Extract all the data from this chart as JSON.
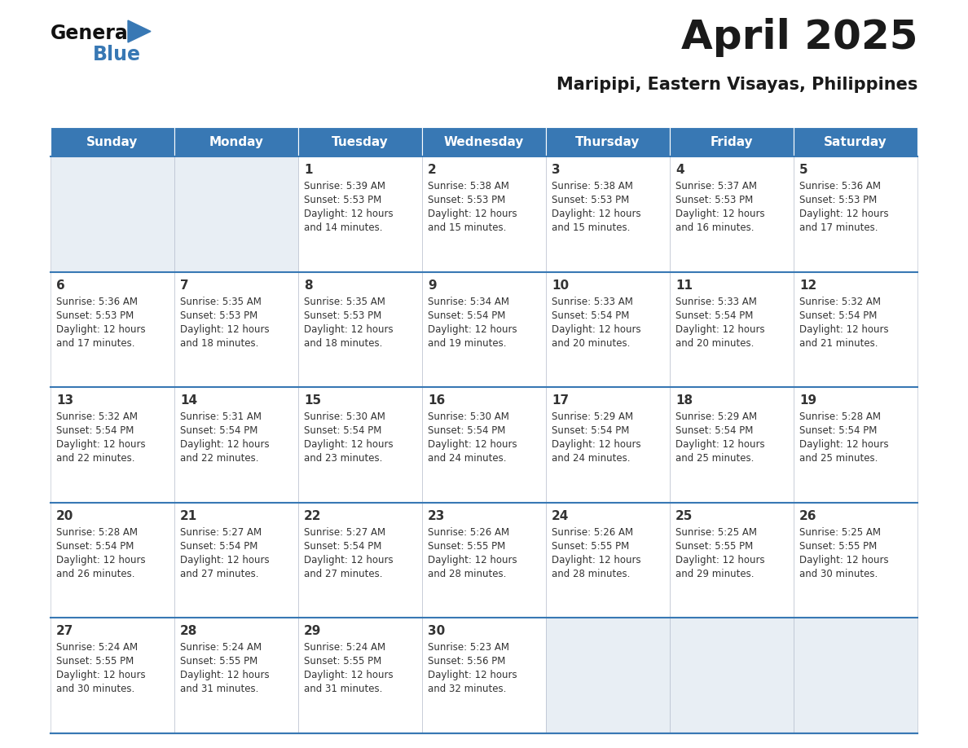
{
  "title": "April 2025",
  "subtitle": "Maripipi, Eastern Visayas, Philippines",
  "header_color": "#3878b4",
  "header_text_color": "#ffffff",
  "border_color": "#3878b4",
  "days_of_week": [
    "Sunday",
    "Monday",
    "Tuesday",
    "Wednesday",
    "Thursday",
    "Friday",
    "Saturday"
  ],
  "title_color": "#1a1a1a",
  "subtitle_color": "#1a1a1a",
  "text_color": "#333333",
  "empty_cell_color": "#e8eef4",
  "filled_cell_color": "#ffffff",
  "calendar_data": [
    [
      {
        "day": "",
        "sunrise": "",
        "sunset": "",
        "daylight": ""
      },
      {
        "day": "",
        "sunrise": "",
        "sunset": "",
        "daylight": ""
      },
      {
        "day": "1",
        "sunrise": "Sunrise: 5:39 AM",
        "sunset": "Sunset: 5:53 PM",
        "daylight": "Daylight: 12 hours\nand 14 minutes."
      },
      {
        "day": "2",
        "sunrise": "Sunrise: 5:38 AM",
        "sunset": "Sunset: 5:53 PM",
        "daylight": "Daylight: 12 hours\nand 15 minutes."
      },
      {
        "day": "3",
        "sunrise": "Sunrise: 5:38 AM",
        "sunset": "Sunset: 5:53 PM",
        "daylight": "Daylight: 12 hours\nand 15 minutes."
      },
      {
        "day": "4",
        "sunrise": "Sunrise: 5:37 AM",
        "sunset": "Sunset: 5:53 PM",
        "daylight": "Daylight: 12 hours\nand 16 minutes."
      },
      {
        "day": "5",
        "sunrise": "Sunrise: 5:36 AM",
        "sunset": "Sunset: 5:53 PM",
        "daylight": "Daylight: 12 hours\nand 17 minutes."
      }
    ],
    [
      {
        "day": "6",
        "sunrise": "Sunrise: 5:36 AM",
        "sunset": "Sunset: 5:53 PM",
        "daylight": "Daylight: 12 hours\nand 17 minutes."
      },
      {
        "day": "7",
        "sunrise": "Sunrise: 5:35 AM",
        "sunset": "Sunset: 5:53 PM",
        "daylight": "Daylight: 12 hours\nand 18 minutes."
      },
      {
        "day": "8",
        "sunrise": "Sunrise: 5:35 AM",
        "sunset": "Sunset: 5:53 PM",
        "daylight": "Daylight: 12 hours\nand 18 minutes."
      },
      {
        "day": "9",
        "sunrise": "Sunrise: 5:34 AM",
        "sunset": "Sunset: 5:54 PM",
        "daylight": "Daylight: 12 hours\nand 19 minutes."
      },
      {
        "day": "10",
        "sunrise": "Sunrise: 5:33 AM",
        "sunset": "Sunset: 5:54 PM",
        "daylight": "Daylight: 12 hours\nand 20 minutes."
      },
      {
        "day": "11",
        "sunrise": "Sunrise: 5:33 AM",
        "sunset": "Sunset: 5:54 PM",
        "daylight": "Daylight: 12 hours\nand 20 minutes."
      },
      {
        "day": "12",
        "sunrise": "Sunrise: 5:32 AM",
        "sunset": "Sunset: 5:54 PM",
        "daylight": "Daylight: 12 hours\nand 21 minutes."
      }
    ],
    [
      {
        "day": "13",
        "sunrise": "Sunrise: 5:32 AM",
        "sunset": "Sunset: 5:54 PM",
        "daylight": "Daylight: 12 hours\nand 22 minutes."
      },
      {
        "day": "14",
        "sunrise": "Sunrise: 5:31 AM",
        "sunset": "Sunset: 5:54 PM",
        "daylight": "Daylight: 12 hours\nand 22 minutes."
      },
      {
        "day": "15",
        "sunrise": "Sunrise: 5:30 AM",
        "sunset": "Sunset: 5:54 PM",
        "daylight": "Daylight: 12 hours\nand 23 minutes."
      },
      {
        "day": "16",
        "sunrise": "Sunrise: 5:30 AM",
        "sunset": "Sunset: 5:54 PM",
        "daylight": "Daylight: 12 hours\nand 24 minutes."
      },
      {
        "day": "17",
        "sunrise": "Sunrise: 5:29 AM",
        "sunset": "Sunset: 5:54 PM",
        "daylight": "Daylight: 12 hours\nand 24 minutes."
      },
      {
        "day": "18",
        "sunrise": "Sunrise: 5:29 AM",
        "sunset": "Sunset: 5:54 PM",
        "daylight": "Daylight: 12 hours\nand 25 minutes."
      },
      {
        "day": "19",
        "sunrise": "Sunrise: 5:28 AM",
        "sunset": "Sunset: 5:54 PM",
        "daylight": "Daylight: 12 hours\nand 25 minutes."
      }
    ],
    [
      {
        "day": "20",
        "sunrise": "Sunrise: 5:28 AM",
        "sunset": "Sunset: 5:54 PM",
        "daylight": "Daylight: 12 hours\nand 26 minutes."
      },
      {
        "day": "21",
        "sunrise": "Sunrise: 5:27 AM",
        "sunset": "Sunset: 5:54 PM",
        "daylight": "Daylight: 12 hours\nand 27 minutes."
      },
      {
        "day": "22",
        "sunrise": "Sunrise: 5:27 AM",
        "sunset": "Sunset: 5:54 PM",
        "daylight": "Daylight: 12 hours\nand 27 minutes."
      },
      {
        "day": "23",
        "sunrise": "Sunrise: 5:26 AM",
        "sunset": "Sunset: 5:55 PM",
        "daylight": "Daylight: 12 hours\nand 28 minutes."
      },
      {
        "day": "24",
        "sunrise": "Sunrise: 5:26 AM",
        "sunset": "Sunset: 5:55 PM",
        "daylight": "Daylight: 12 hours\nand 28 minutes."
      },
      {
        "day": "25",
        "sunrise": "Sunrise: 5:25 AM",
        "sunset": "Sunset: 5:55 PM",
        "daylight": "Daylight: 12 hours\nand 29 minutes."
      },
      {
        "day": "26",
        "sunrise": "Sunrise: 5:25 AM",
        "sunset": "Sunset: 5:55 PM",
        "daylight": "Daylight: 12 hours\nand 30 minutes."
      }
    ],
    [
      {
        "day": "27",
        "sunrise": "Sunrise: 5:24 AM",
        "sunset": "Sunset: 5:55 PM",
        "daylight": "Daylight: 12 hours\nand 30 minutes."
      },
      {
        "day": "28",
        "sunrise": "Sunrise: 5:24 AM",
        "sunset": "Sunset: 5:55 PM",
        "daylight": "Daylight: 12 hours\nand 31 minutes."
      },
      {
        "day": "29",
        "sunrise": "Sunrise: 5:24 AM",
        "sunset": "Sunset: 5:55 PM",
        "daylight": "Daylight: 12 hours\nand 31 minutes."
      },
      {
        "day": "30",
        "sunrise": "Sunrise: 5:23 AM",
        "sunset": "Sunset: 5:56 PM",
        "daylight": "Daylight: 12 hours\nand 32 minutes."
      },
      {
        "day": "",
        "sunrise": "",
        "sunset": "",
        "daylight": ""
      },
      {
        "day": "",
        "sunrise": "",
        "sunset": "",
        "daylight": ""
      },
      {
        "day": "",
        "sunrise": "",
        "sunset": "",
        "daylight": ""
      }
    ]
  ]
}
